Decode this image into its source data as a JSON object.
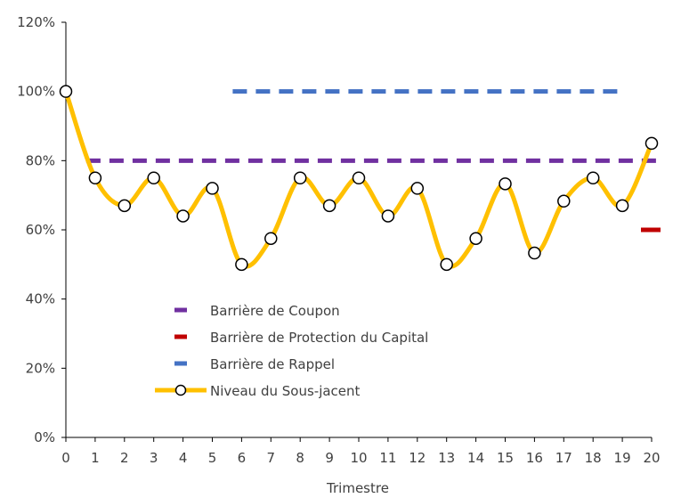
{
  "chart_data": {
    "type": "line",
    "xlabel": "Trimestre",
    "ylabel": "",
    "x": [
      0,
      1,
      2,
      3,
      4,
      5,
      6,
      7,
      8,
      9,
      10,
      11,
      12,
      13,
      14,
      15,
      16,
      17,
      18,
      19,
      20
    ],
    "xlim": [
      0,
      20
    ],
    "ylim": [
      0,
      1.2
    ],
    "y_ticks": [
      {
        "value": 0,
        "label": "0%"
      },
      {
        "value": 0.2,
        "label": "20%"
      },
      {
        "value": 0.4,
        "label": "40%"
      },
      {
        "value": 0.6,
        "label": "60%"
      },
      {
        "value": 0.8,
        "label": "80%"
      },
      {
        "value": 1.0,
        "label": "100%"
      },
      {
        "value": 1.2,
        "label": "120%"
      }
    ],
    "x_ticks": [
      "0",
      "1",
      "2",
      "3",
      "4",
      "5",
      "6",
      "7",
      "8",
      "9",
      "10",
      "11",
      "12",
      "13",
      "14",
      "15",
      "16",
      "17",
      "18",
      "19",
      "20"
    ],
    "grid": false,
    "legend_position": "center-left",
    "series": [
      {
        "name": "Barrière de Coupon",
        "style": "dashed",
        "color": "#7030A0",
        "x": [
          1,
          20
        ],
        "values": [
          0.8,
          0.8
        ]
      },
      {
        "name": "Barrière de Protection du Capital",
        "style": "dashed",
        "color": "#C00000",
        "x": [
          20
        ],
        "values": [
          0.6
        ]
      },
      {
        "name": "Barrière de Rappel",
        "style": "dashed",
        "color": "#4472C4",
        "x": [
          6,
          19
        ],
        "values": [
          1.0,
          1.0
        ]
      },
      {
        "name": "Niveau du Sous-jacent",
        "style": "smooth-line-markers",
        "color": "#FFC000",
        "x": [
          0,
          1,
          2,
          3,
          4,
          5,
          6,
          7,
          8,
          9,
          10,
          11,
          12,
          13,
          14,
          15,
          16,
          17,
          18,
          19,
          20
        ],
        "values": [
          1.0,
          0.75,
          0.67,
          0.75,
          0.64,
          0.72,
          0.5,
          0.575,
          0.75,
          0.67,
          0.75,
          0.64,
          0.72,
          0.5,
          0.575,
          0.733,
          0.533,
          0.683,
          0.75,
          0.67,
          0.85
        ]
      }
    ]
  }
}
